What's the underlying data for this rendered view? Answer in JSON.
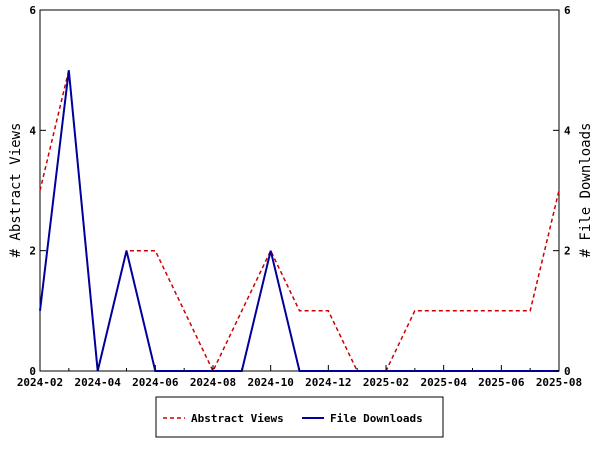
{
  "chart_data": {
    "type": "line",
    "x": [
      "2024-02",
      "2024-03",
      "2024-04",
      "2024-05",
      "2024-06",
      "2024-07",
      "2024-08",
      "2024-09",
      "2024-10",
      "2024-11",
      "2024-12",
      "2025-01",
      "2025-02",
      "2025-03",
      "2025-04",
      "2025-05",
      "2025-06",
      "2025-07",
      "2025-08"
    ],
    "x_tick_labels": [
      "2024-02",
      "2024-04",
      "2024-06",
      "2024-08",
      "2024-10",
      "2024-12",
      "2025-02",
      "2025-04",
      "2025-06",
      "2025-08"
    ],
    "series": [
      {
        "name": "Abstract Views",
        "axis": "left",
        "color": "#cc0000",
        "dash": "dashed",
        "values": [
          3,
          5,
          0,
          2,
          2,
          1,
          0,
          1,
          2,
          1,
          1,
          0,
          0,
          1,
          1,
          1,
          1,
          1,
          3
        ]
      },
      {
        "name": "File Downloads",
        "axis": "right",
        "color": "#00009c",
        "dash": "solid",
        "values": [
          1,
          5,
          0,
          2,
          0,
          0,
          0,
          0,
          2,
          0,
          0,
          0,
          0,
          0,
          0,
          0,
          0,
          0,
          0
        ]
      }
    ],
    "ylabel": "# Abstract Views",
    "y2label": "# File Downloads",
    "ylim": [
      0,
      6
    ],
    "y2lim": [
      0,
      6
    ],
    "y_ticks": [
      "0",
      "2",
      "4",
      "6"
    ],
    "y2_ticks": [
      "0",
      "2",
      "4",
      "6"
    ],
    "grid": false,
    "legend_position": "bottom"
  }
}
